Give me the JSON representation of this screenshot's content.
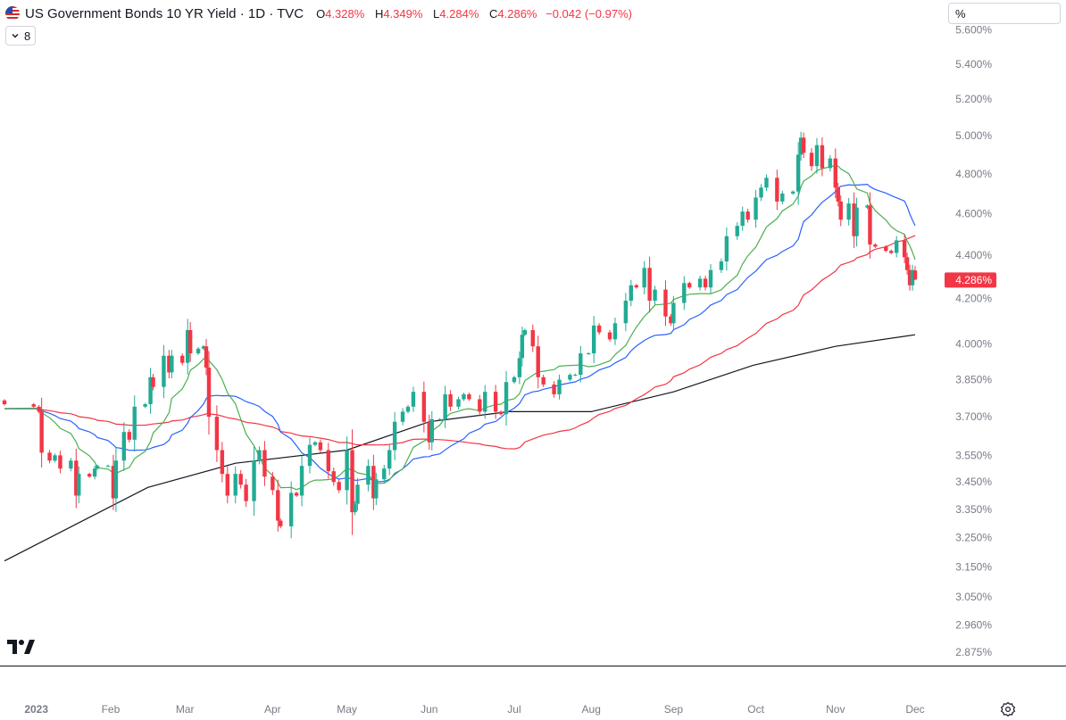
{
  "header": {
    "title": "US Government Bonds 10 YR Yield · 1D · TVC",
    "open_key": "O",
    "open": "4.328%",
    "high_key": "H",
    "high": "4.349%",
    "low_key": "L",
    "low": "4.284%",
    "close_key": "C",
    "close": "4.286%",
    "change": "−0.042 (−0.97%)",
    "flag_icon": "us-flag-icon"
  },
  "indicator_toggle": {
    "label": "8",
    "icon": "chevron-down-icon"
  },
  "scale_box": {
    "value": "%"
  },
  "colors": {
    "up": "#22ab94",
    "down": "#f23645",
    "sma_short": "#4caf50",
    "sma_medium": "#2962ff",
    "sma_long": "#f23645",
    "sma_very_long": "#131722",
    "price_tag": "#f23645",
    "axis_text": "#787b86"
  },
  "chart_data": {
    "type": "candlestick",
    "price_label": "4.286%",
    "y_scale": "log",
    "ylim": [
      2.85,
      5.62
    ],
    "y_ticks": [
      "2.875%",
      "2.960%",
      "3.050%",
      "3.150%",
      "3.250%",
      "3.350%",
      "3.450%",
      "3.550%",
      "3.700%",
      "3.850%",
      "4.000%",
      "4.200%",
      "4.400%",
      "4.600%",
      "4.800%",
      "5.000%",
      "5.200%",
      "5.400%",
      "5.600%"
    ],
    "x_ticks": [
      "2023",
      "Feb",
      "Mar",
      "Apr",
      "May",
      "Jun",
      "Jul",
      "Aug",
      "Sep",
      "Oct",
      "Nov",
      "Dec"
    ],
    "x_range": [
      "2022-12-23",
      "2023-12-01"
    ],
    "closes": [
      {
        "d": "2022-12-23",
        "c": 3.75
      },
      {
        "d": "2023-01-03",
        "c": 3.74
      },
      {
        "d": "2023-01-05",
        "c": 3.72
      },
      {
        "d": "2023-01-06",
        "c": 3.56
      },
      {
        "d": "2023-01-09",
        "c": 3.53
      },
      {
        "d": "2023-01-11",
        "c": 3.55
      },
      {
        "d": "2023-01-13",
        "c": 3.5
      },
      {
        "d": "2023-01-17",
        "c": 3.53
      },
      {
        "d": "2023-01-19",
        "c": 3.4
      },
      {
        "d": "2023-01-20",
        "c": 3.48
      },
      {
        "d": "2023-01-24",
        "c": 3.47
      },
      {
        "d": "2023-01-26",
        "c": 3.5
      },
      {
        "d": "2023-01-27",
        "c": 3.51
      },
      {
        "d": "2023-01-31",
        "c": 3.51
      },
      {
        "d": "2023-02-02",
        "c": 3.39
      },
      {
        "d": "2023-02-03",
        "c": 3.53
      },
      {
        "d": "2023-02-06",
        "c": 3.64
      },
      {
        "d": "2023-02-08",
        "c": 3.61
      },
      {
        "d": "2023-02-10",
        "c": 3.74
      },
      {
        "d": "2023-02-14",
        "c": 3.75
      },
      {
        "d": "2023-02-16",
        "c": 3.86
      },
      {
        "d": "2023-02-17",
        "c": 3.82
      },
      {
        "d": "2023-02-21",
        "c": 3.95
      },
      {
        "d": "2023-02-23",
        "c": 3.88
      },
      {
        "d": "2023-02-24",
        "c": 3.95
      },
      {
        "d": "2023-02-28",
        "c": 3.92
      },
      {
        "d": "2023-03-02",
        "c": 4.06
      },
      {
        "d": "2023-03-03",
        "c": 3.96
      },
      {
        "d": "2023-03-06",
        "c": 3.98
      },
      {
        "d": "2023-03-08",
        "c": 3.99
      },
      {
        "d": "2023-03-09",
        "c": 3.9
      },
      {
        "d": "2023-03-10",
        "c": 3.7
      },
      {
        "d": "2023-03-13",
        "c": 3.57
      },
      {
        "d": "2023-03-15",
        "c": 3.48
      },
      {
        "d": "2023-03-17",
        "c": 3.4
      },
      {
        "d": "2023-03-20",
        "c": 3.48
      },
      {
        "d": "2023-03-22",
        "c": 3.44
      },
      {
        "d": "2023-03-24",
        "c": 3.38
      },
      {
        "d": "2023-03-27",
        "c": 3.53
      },
      {
        "d": "2023-03-29",
        "c": 3.57
      },
      {
        "d": "2023-03-31",
        "c": 3.47
      },
      {
        "d": "2023-04-03",
        "c": 3.42
      },
      {
        "d": "2023-04-05",
        "c": 3.31
      },
      {
        "d": "2023-04-06",
        "c": 3.29
      },
      {
        "d": "2023-04-10",
        "c": 3.41
      },
      {
        "d": "2023-04-12",
        "c": 3.4
      },
      {
        "d": "2023-04-14",
        "c": 3.51
      },
      {
        "d": "2023-04-17",
        "c": 3.59
      },
      {
        "d": "2023-04-19",
        "c": 3.6
      },
      {
        "d": "2023-04-21",
        "c": 3.57
      },
      {
        "d": "2023-04-24",
        "c": 3.49
      },
      {
        "d": "2023-04-26",
        "c": 3.45
      },
      {
        "d": "2023-04-28",
        "c": 3.42
      },
      {
        "d": "2023-05-01",
        "c": 3.57
      },
      {
        "d": "2023-05-03",
        "c": 3.34
      },
      {
        "d": "2023-05-04",
        "c": 3.37
      },
      {
        "d": "2023-05-05",
        "c": 3.44
      },
      {
        "d": "2023-05-09",
        "c": 3.51
      },
      {
        "d": "2023-05-11",
        "c": 3.39
      },
      {
        "d": "2023-05-12",
        "c": 3.46
      },
      {
        "d": "2023-05-15",
        "c": 3.5
      },
      {
        "d": "2023-05-17",
        "c": 3.57
      },
      {
        "d": "2023-05-19",
        "c": 3.68
      },
      {
        "d": "2023-05-22",
        "c": 3.72
      },
      {
        "d": "2023-05-24",
        "c": 3.74
      },
      {
        "d": "2023-05-26",
        "c": 3.8
      },
      {
        "d": "2023-05-30",
        "c": 3.68
      },
      {
        "d": "2023-06-01",
        "c": 3.6
      },
      {
        "d": "2023-06-02",
        "c": 3.69
      },
      {
        "d": "2023-06-05",
        "c": 3.69
      },
      {
        "d": "2023-06-07",
        "c": 3.79
      },
      {
        "d": "2023-06-09",
        "c": 3.74
      },
      {
        "d": "2023-06-12",
        "c": 3.77
      },
      {
        "d": "2023-06-14",
        "c": 3.79
      },
      {
        "d": "2023-06-16",
        "c": 3.77
      },
      {
        "d": "2023-06-20",
        "c": 3.72
      },
      {
        "d": "2023-06-22",
        "c": 3.8
      },
      {
        "d": "2023-06-26",
        "c": 3.72
      },
      {
        "d": "2023-06-28",
        "c": 3.71
      },
      {
        "d": "2023-06-30",
        "c": 3.84
      },
      {
        "d": "2023-07-03",
        "c": 3.86
      },
      {
        "d": "2023-07-05",
        "c": 3.94
      },
      {
        "d": "2023-07-06",
        "c": 4.04
      },
      {
        "d": "2023-07-07",
        "c": 4.06
      },
      {
        "d": "2023-07-10",
        "c": 3.99
      },
      {
        "d": "2023-07-12",
        "c": 3.86
      },
      {
        "d": "2023-07-14",
        "c": 3.83
      },
      {
        "d": "2023-07-18",
        "c": 3.79
      },
      {
        "d": "2023-07-20",
        "c": 3.85
      },
      {
        "d": "2023-07-24",
        "c": 3.87
      },
      {
        "d": "2023-07-26",
        "c": 3.87
      },
      {
        "d": "2023-07-28",
        "c": 3.96
      },
      {
        "d": "2023-07-31",
        "c": 3.96
      },
      {
        "d": "2023-08-02",
        "c": 4.08
      },
      {
        "d": "2023-08-04",
        "c": 4.05
      },
      {
        "d": "2023-08-08",
        "c": 4.02
      },
      {
        "d": "2023-08-10",
        "c": 4.09
      },
      {
        "d": "2023-08-14",
        "c": 4.19
      },
      {
        "d": "2023-08-16",
        "c": 4.26
      },
      {
        "d": "2023-08-18",
        "c": 4.25
      },
      {
        "d": "2023-08-21",
        "c": 4.34
      },
      {
        "d": "2023-08-23",
        "c": 4.19
      },
      {
        "d": "2023-08-25",
        "c": 4.24
      },
      {
        "d": "2023-08-29",
        "c": 4.12
      },
      {
        "d": "2023-08-31",
        "c": 4.09
      },
      {
        "d": "2023-09-01",
        "c": 4.18
      },
      {
        "d": "2023-09-05",
        "c": 4.27
      },
      {
        "d": "2023-09-07",
        "c": 4.25
      },
      {
        "d": "2023-09-11",
        "c": 4.29
      },
      {
        "d": "2023-09-13",
        "c": 4.25
      },
      {
        "d": "2023-09-15",
        "c": 4.33
      },
      {
        "d": "2023-09-19",
        "c": 4.37
      },
      {
        "d": "2023-09-21",
        "c": 4.49
      },
      {
        "d": "2023-09-25",
        "c": 4.54
      },
      {
        "d": "2023-09-27",
        "c": 4.61
      },
      {
        "d": "2023-09-29",
        "c": 4.57
      },
      {
        "d": "2023-10-02",
        "c": 4.68
      },
      {
        "d": "2023-10-04",
        "c": 4.73
      },
      {
        "d": "2023-10-06",
        "c": 4.78
      },
      {
        "d": "2023-10-10",
        "c": 4.66
      },
      {
        "d": "2023-10-12",
        "c": 4.7
      },
      {
        "d": "2023-10-16",
        "c": 4.71
      },
      {
        "d": "2023-10-18",
        "c": 4.9
      },
      {
        "d": "2023-10-19",
        "c": 4.99
      },
      {
        "d": "2023-10-20",
        "c": 4.91
      },
      {
        "d": "2023-10-23",
        "c": 4.84
      },
      {
        "d": "2023-10-25",
        "c": 4.95
      },
      {
        "d": "2023-10-27",
        "c": 4.83
      },
      {
        "d": "2023-10-30",
        "c": 4.88
      },
      {
        "d": "2023-11-01",
        "c": 4.73
      },
      {
        "d": "2023-11-02",
        "c": 4.66
      },
      {
        "d": "2023-11-03",
        "c": 4.57
      },
      {
        "d": "2023-11-06",
        "c": 4.65
      },
      {
        "d": "2023-11-08",
        "c": 4.49
      },
      {
        "d": "2023-11-09",
        "c": 4.63
      },
      {
        "d": "2023-11-13",
        "c": 4.64
      },
      {
        "d": "2023-11-14",
        "c": 4.45
      },
      {
        "d": "2023-11-16",
        "c": 4.44
      },
      {
        "d": "2023-11-20",
        "c": 4.42
      },
      {
        "d": "2023-11-22",
        "c": 4.41
      },
      {
        "d": "2023-11-24",
        "c": 4.47
      },
      {
        "d": "2023-11-27",
        "c": 4.39
      },
      {
        "d": "2023-11-28",
        "c": 4.33
      },
      {
        "d": "2023-11-29",
        "c": 4.26
      },
      {
        "d": "2023-11-30",
        "c": 4.33
      },
      {
        "d": "2023-12-01",
        "c": 4.286
      }
    ],
    "last_candle": {
      "d": "2023-12-01",
      "o": 4.328,
      "h": 4.349,
      "l": 4.284,
      "c": 4.286
    },
    "series": [
      {
        "kind": "moving-average",
        "color": "#4caf50",
        "window": 10
      },
      {
        "kind": "moving-average",
        "color": "#2962ff",
        "window": 20
      },
      {
        "kind": "moving-average",
        "color": "#f23645",
        "window": 50
      },
      {
        "kind": "moving-average",
        "color": "#131722",
        "window": 200,
        "points": [
          {
            "d": "2022-12-23",
            "v": 3.17
          },
          {
            "d": "2023-02-15",
            "v": 3.43
          },
          {
            "d": "2023-03-20",
            "v": 3.52
          },
          {
            "d": "2023-05-01",
            "v": 3.57
          },
          {
            "d": "2023-06-01",
            "v": 3.68
          },
          {
            "d": "2023-07-01",
            "v": 3.72
          },
          {
            "d": "2023-08-01",
            "v": 3.72
          },
          {
            "d": "2023-09-01",
            "v": 3.8
          },
          {
            "d": "2023-10-01",
            "v": 3.91
          },
          {
            "d": "2023-11-01",
            "v": 3.99
          },
          {
            "d": "2023-12-01",
            "v": 4.04
          }
        ]
      }
    ]
  }
}
